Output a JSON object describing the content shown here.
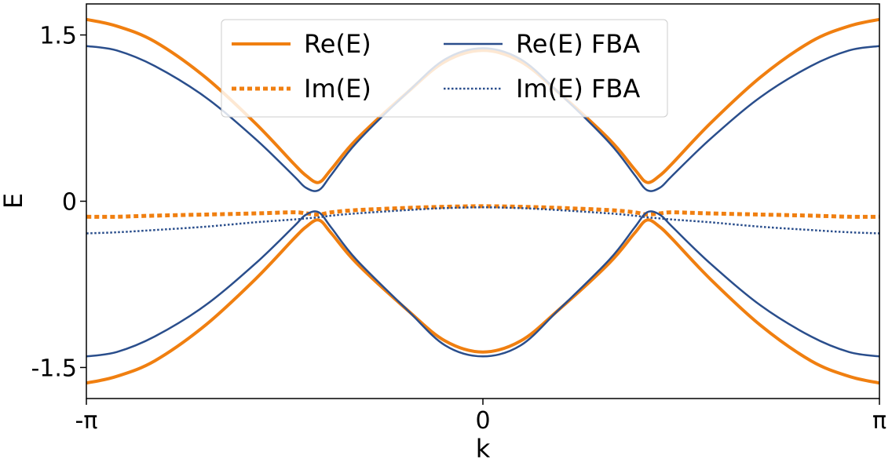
{
  "chart_data": {
    "type": "line",
    "title": "",
    "xlabel": "k",
    "ylabel": "E",
    "xlim": [
      -3.14159,
      3.14159
    ],
    "ylim": [
      -1.78,
      1.78
    ],
    "x_ticks": [
      {
        "value": -3.14159,
        "label": "-π"
      },
      {
        "value": 0,
        "label": "0"
      },
      {
        "value": 3.14159,
        "label": "π"
      }
    ],
    "y_ticks": [
      {
        "value": -1.5,
        "label": "-1.5"
      },
      {
        "value": 0,
        "label": "0"
      },
      {
        "value": 1.5,
        "label": "1.5"
      }
    ],
    "grid": false,
    "legend_position": "top-center",
    "legend_columns": 2,
    "x": [
      -3.14,
      -2.9,
      -2.6,
      -2.2,
      -1.8,
      -1.5,
      -1.4,
      -1.3,
      -1.2,
      -1.0,
      -0.6,
      -0.3,
      0,
      0.3,
      0.6,
      1.0,
      1.2,
      1.3,
      1.4,
      1.5,
      1.8,
      2.2,
      2.6,
      2.9,
      3.14
    ],
    "series": [
      {
        "name": "Re(E)",
        "color": "#f07f10",
        "style": "solid",
        "width": 4,
        "branches": [
          [
            1.64,
            1.58,
            1.44,
            1.12,
            0.7,
            0.34,
            0.23,
            0.17,
            0.29,
            0.56,
            0.98,
            1.26,
            1.36,
            1.26,
            0.98,
            0.56,
            0.29,
            0.17,
            0.23,
            0.34,
            0.7,
            1.12,
            1.44,
            1.58,
            1.64
          ],
          [
            -1.64,
            -1.58,
            -1.44,
            -1.12,
            -0.7,
            -0.34,
            -0.23,
            -0.17,
            -0.29,
            -0.56,
            -0.98,
            -1.26,
            -1.36,
            -1.26,
            -0.98,
            -0.56,
            -0.29,
            -0.17,
            -0.23,
            -0.34,
            -0.7,
            -1.12,
            -1.44,
            -1.58,
            -1.64
          ]
        ]
      },
      {
        "name": "Im(E)",
        "color": "#f07f10",
        "style": "dotted",
        "width": 5,
        "branches": [
          [
            -0.14,
            -0.14,
            -0.13,
            -0.12,
            -0.11,
            -0.1,
            -0.11,
            -0.12,
            -0.1,
            -0.08,
            -0.06,
            -0.05,
            -0.045,
            -0.05,
            -0.06,
            -0.08,
            -0.1,
            -0.12,
            -0.11,
            -0.1,
            -0.11,
            -0.12,
            -0.13,
            -0.14,
            -0.14
          ]
        ]
      },
      {
        "name": "Re(E) FBA",
        "color": "#2a4e8c",
        "style": "solid",
        "width": 2.5,
        "branches": [
          [
            1.4,
            1.36,
            1.22,
            0.94,
            0.56,
            0.23,
            0.12,
            0.1,
            0.24,
            0.53,
            0.98,
            1.28,
            1.38,
            1.28,
            0.98,
            0.53,
            0.24,
            0.1,
            0.12,
            0.23,
            0.56,
            0.94,
            1.22,
            1.36,
            1.4
          ],
          [
            -1.4,
            -1.36,
            -1.22,
            -0.94,
            -0.56,
            -0.23,
            -0.12,
            -0.1,
            -0.24,
            -0.53,
            -0.98,
            -1.3,
            -1.4,
            -1.3,
            -0.98,
            -0.53,
            -0.24,
            -0.1,
            -0.12,
            -0.23,
            -0.56,
            -0.94,
            -1.22,
            -1.36,
            -1.4
          ]
        ]
      },
      {
        "name": "Im(E) FBA",
        "color": "#2a4e8c",
        "style": "dotted",
        "width": 2.5,
        "branches": [
          [
            -0.29,
            -0.28,
            -0.26,
            -0.23,
            -0.19,
            -0.165,
            -0.155,
            -0.145,
            -0.13,
            -0.11,
            -0.08,
            -0.062,
            -0.055,
            -0.062,
            -0.08,
            -0.11,
            -0.13,
            -0.145,
            -0.155,
            -0.165,
            -0.19,
            -0.23,
            -0.26,
            -0.28,
            -0.29
          ]
        ]
      }
    ]
  }
}
